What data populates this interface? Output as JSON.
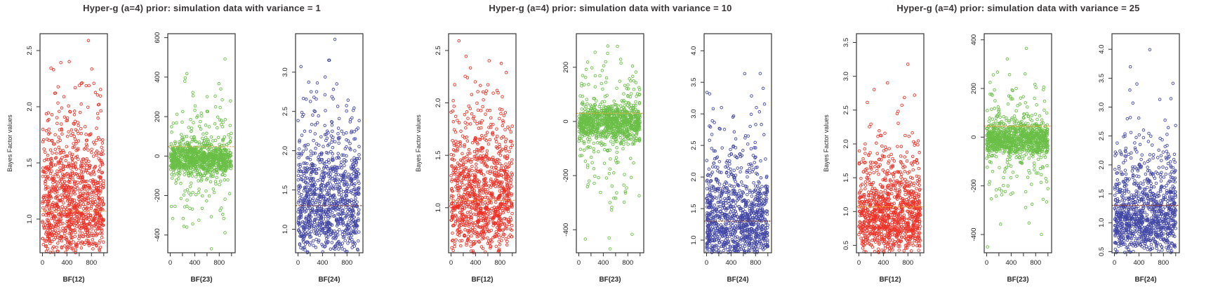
{
  "figure": {
    "ylabel": "Bayes Factor values",
    "background_color": "#ffffff",
    "axis_color": "#333333",
    "tick_label_color": "#1c1c1c",
    "title_color": "#383434"
  },
  "chart_data": [
    {
      "type": "scatter",
      "title": "Hyper-g (a=4) prior: simulation data with variance = 1",
      "ylabel": "Bayes Factor values",
      "xlim": [
        -40,
        1060
      ],
      "xticks": [
        0,
        200,
        400,
        600,
        800,
        1000
      ],
      "xtick_labels": [
        "0",
        "",
        "400",
        "",
        "800",
        ""
      ],
      "panels": [
        {
          "xlabel": "BF(12)",
          "point_color": "#ee3126",
          "n": 1000,
          "ylim": [
            0.7,
            2.65
          ],
          "yticks": [
            1.0,
            1.5,
            2.0,
            2.5
          ],
          "ytick_labels": [
            "1.0",
            "1.5",
            "2.0",
            "2.5"
          ],
          "ref_line": {
            "y": 1.07,
            "color": "#f0a23c"
          },
          "dist": {
            "kind": "lognormal",
            "median": 1.15,
            "sigma": 0.28
          },
          "seed": 11
        },
        {
          "xlabel": "BF(23)",
          "point_color": "#6abf47",
          "n": 1000,
          "ylim": [
            -490,
            620
          ],
          "yticks": [
            -400,
            -200,
            0,
            200,
            400,
            600
          ],
          "ytick_labels": [
            "-400",
            "-200",
            "0",
            "200",
            "400",
            "600"
          ],
          "ref_line": {
            "y": 48,
            "color": "#f0a23c"
          },
          "dist": {
            "kind": "normal-mixture",
            "components": [
              {
                "w": 0.78,
                "mean": -12,
                "sd": 38
              },
              {
                "w": 0.18,
                "mean": 0,
                "sd": 150
              },
              {
                "w": 0.04,
                "mean": 0,
                "sd": 300
              }
            ]
          },
          "seed": 12
        },
        {
          "xlabel": "BF(24)",
          "point_color": "#4247a5",
          "n": 1000,
          "ylim": [
            0.7,
            3.49
          ],
          "yticks": [
            1.0,
            1.5,
            2.0,
            2.5,
            3.0
          ],
          "ytick_labels": [
            "1.0",
            "1.5",
            "2.0",
            "2.5",
            "3.0"
          ],
          "ref_line": {
            "y": 1.3,
            "color": "#9c4632"
          },
          "dist": {
            "kind": "lognormal",
            "median": 1.35,
            "sigma": 0.32
          },
          "seed": 13
        }
      ]
    },
    {
      "type": "scatter",
      "title": "Hyper-g (a=4) prior: simulation data with variance = 10",
      "ylabel": "Bayes Factor values",
      "xlim": [
        -40,
        1060
      ],
      "xticks": [
        0,
        200,
        400,
        600,
        800,
        1000
      ],
      "xtick_labels": [
        "0",
        "",
        "400",
        "",
        "800",
        ""
      ],
      "panels": [
        {
          "xlabel": "BF(12)",
          "point_color": "#ee3126",
          "n": 1000,
          "ylim": [
            0.57,
            2.66
          ],
          "yticks": [
            1.0,
            1.5,
            2.0,
            2.5
          ],
          "ytick_labels": [
            "1.0",
            "1.5",
            "2.0",
            "2.5"
          ],
          "ref_line": {
            "y": 1.07,
            "color": "#f0a23c"
          },
          "dist": {
            "kind": "lognormal",
            "median": 1.12,
            "sigma": 0.3
          },
          "seed": 21
        },
        {
          "xlabel": "BF(23)",
          "point_color": "#6abf47",
          "n": 1000,
          "ylim": [
            -485,
            324
          ],
          "yticks": [
            -400,
            -200,
            0,
            200
          ],
          "ytick_labels": [
            "-400",
            "-200",
            "0",
            "200"
          ],
          "ref_line": {
            "y": 30,
            "color": "#f0a23c"
          },
          "dist": {
            "kind": "normal-mixture",
            "components": [
              {
                "w": 0.8,
                "mean": -5,
                "sd": 34
              },
              {
                "w": 0.16,
                "mean": 0,
                "sd": 130
              },
              {
                "w": 0.04,
                "mean": -40,
                "sd": 260
              }
            ]
          },
          "seed": 22
        },
        {
          "xlabel": "BF(24)",
          "point_color": "#4247a5",
          "n": 1000,
          "ylim": [
            0.8,
            4.27
          ],
          "yticks": [
            1.0,
            1.5,
            2.0,
            2.5,
            3.0,
            3.5,
            4.0
          ],
          "ytick_labels": [
            "1.0",
            "1.5",
            "2.0",
            "2.5",
            "3.0",
            "3.5",
            "4.0"
          ],
          "ref_line": {
            "y": 1.3,
            "color": "#9c4632"
          },
          "dist": {
            "kind": "lognormal",
            "median": 1.28,
            "sigma": 0.35
          },
          "seed": 23
        }
      ]
    },
    {
      "type": "scatter",
      "title": "Hyper-g (a=4) prior: simulation data with variance = 25",
      "ylabel": "Bayes Factor values",
      "xlim": [
        -40,
        1060
      ],
      "xticks": [
        0,
        200,
        400,
        600,
        800,
        1000
      ],
      "xtick_labels": [
        "0",
        "",
        "400",
        "",
        "800",
        ""
      ],
      "panels": [
        {
          "xlabel": "BF(12)",
          "point_color": "#ee3126",
          "n": 1000,
          "ylim": [
            0.39,
            3.63
          ],
          "yticks": [
            0.5,
            1.0,
            1.5,
            2.0,
            2.5,
            3.0,
            3.5
          ],
          "ytick_labels": [
            "0.5",
            "1.0",
            "1.5",
            "2.0",
            "2.5",
            "3.0",
            "3.5"
          ],
          "ref_line": {
            "y": 1.07,
            "color": "#f0a23c"
          },
          "dist": {
            "kind": "lognormal",
            "median": 0.97,
            "sigma": 0.38
          },
          "seed": 31
        },
        {
          "xlabel": "BF(23)",
          "point_color": "#6abf47",
          "n": 1000,
          "ylim": [
            -475,
            425
          ],
          "yticks": [
            -400,
            -200,
            0,
            200,
            400
          ],
          "ytick_labels": [
            "-400",
            "-200",
            "0",
            "200",
            "400"
          ],
          "ref_line": {
            "y": 45,
            "color": "#f0a23c"
          },
          "dist": {
            "kind": "normal-mixture",
            "components": [
              {
                "w": 0.8,
                "mean": -8,
                "sd": 34
              },
              {
                "w": 0.16,
                "mean": 0,
                "sd": 130
              },
              {
                "w": 0.04,
                "mean": 0,
                "sd": 260
              }
            ]
          },
          "seed": 32
        },
        {
          "xlabel": "BF(24)",
          "point_color": "#4247a5",
          "n": 1000,
          "ylim": [
            0.48,
            4.27
          ],
          "yticks": [
            0.5,
            1.0,
            1.5,
            2.0,
            2.5,
            3.0,
            3.5,
            4.0
          ],
          "ytick_labels": [
            "0.5",
            "1.0",
            "1.5",
            "2.0",
            "2.5",
            "3.0",
            "3.5",
            "4.0"
          ],
          "ref_line": {
            "y": 1.3,
            "color": "#9c4632"
          },
          "dist": {
            "kind": "lognormal",
            "median": 1.12,
            "sigma": 0.4
          },
          "seed": 33
        }
      ]
    }
  ]
}
